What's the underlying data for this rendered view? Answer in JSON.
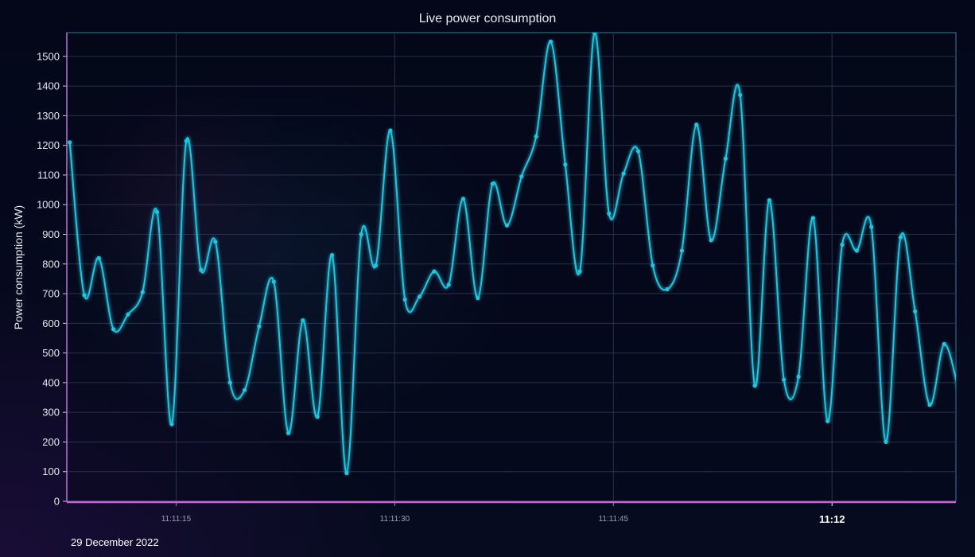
{
  "chart_data": {
    "type": "line",
    "title": "Live power consumption",
    "xlabel": "",
    "ylabel": "Power consumption (kW)",
    "date_label": "29 December 2022",
    "ylim": [
      0,
      1580
    ],
    "yticks": [
      0,
      100,
      200,
      300,
      400,
      500,
      600,
      700,
      800,
      900,
      1000,
      1100,
      1200,
      1300,
      1400,
      1500
    ],
    "xlim": [
      7.5,
      68.5
    ],
    "xticks": [
      {
        "value": 15,
        "label": "11:11:15",
        "major": false
      },
      {
        "value": 30,
        "label": "11:11:30",
        "major": false
      },
      {
        "value": 45,
        "label": "11:11:45",
        "major": false
      },
      {
        "value": 60,
        "label": "11:12",
        "major": true
      }
    ],
    "grid": true,
    "colors": {
      "line": "#19c9e3",
      "grid": "#26324a",
      "border": "#2a6a86",
      "xaxis": "#c06ad0"
    },
    "series": [
      {
        "x": [
          7.7,
          8.7,
          9.7,
          10.7,
          11.7,
          12.7,
          13.7,
          14.7,
          15.7,
          16.7,
          17.7,
          18.7,
          19.7,
          20.7,
          21.7,
          22.7,
          23.7,
          24.7,
          25.7,
          26.7,
          27.7,
          28.7,
          29.7,
          30.7,
          31.7,
          32.7,
          33.7,
          34.7,
          35.7,
          36.7,
          37.7,
          38.7,
          39.7,
          40.7,
          41.7,
          42.7,
          43.7,
          44.7,
          45.7,
          46.7,
          47.7,
          48.7,
          49.7,
          50.7,
          51.7,
          52.7,
          53.7,
          54.7,
          55.7,
          56.7,
          57.7,
          58.7,
          59.7,
          60.7,
          61.7,
          62.7,
          63.7,
          64.7,
          65.7,
          66.7,
          67.7,
          68.7
        ],
        "values": [
          1210,
          695,
          820,
          580,
          630,
          705,
          975,
          260,
          1215,
          780,
          875,
          400,
          375,
          590,
          740,
          230,
          610,
          285,
          830,
          95,
          900,
          795,
          1250,
          680,
          690,
          775,
          730,
          1020,
          685,
          1070,
          930,
          1095,
          1230,
          1550,
          1135,
          775,
          1580,
          970,
          1105,
          1180,
          795,
          715,
          845,
          1270,
          880,
          1155,
          1370,
          390,
          1015,
          410,
          420,
          955,
          270,
          865,
          845,
          925,
          200,
          890,
          640,
          325,
          530,
          370
        ]
      }
    ]
  }
}
